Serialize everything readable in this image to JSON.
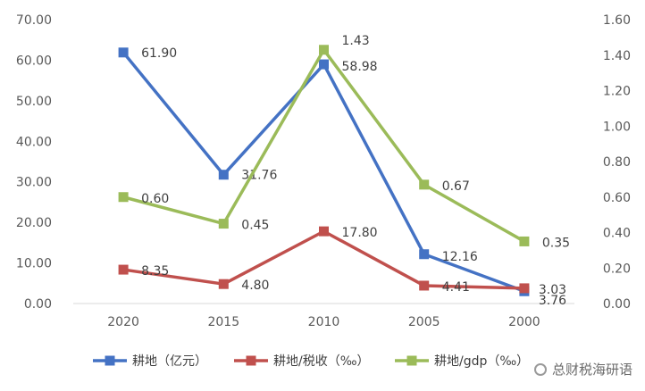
{
  "chart_data": {
    "type": "line",
    "categories": [
      "2020",
      "2015",
      "2010",
      "2005",
      "2000"
    ],
    "left_axis": {
      "min": 0,
      "max": 70,
      "step": 10,
      "tick_labels": [
        "0.00",
        "10.00",
        "20.00",
        "30.00",
        "40.00",
        "50.00",
        "60.00",
        "70.00"
      ]
    },
    "right_axis": {
      "min": 0,
      "max": 1.6,
      "step": 0.2,
      "tick_labels": [
        "0.00",
        "0.20",
        "0.40",
        "0.60",
        "0.80",
        "1.00",
        "1.20",
        "1.40",
        "1.60"
      ]
    },
    "grid": false,
    "legend_position": "bottom",
    "series": [
      {
        "name": "耕地（亿元）",
        "axis": "left",
        "color": "#4472C4",
        "values": [
          61.9,
          31.76,
          58.98,
          12.16,
          3.03
        ],
        "labels": [
          "61.90",
          "31.76",
          "58.98",
          "12.16",
          "3.03"
        ]
      },
      {
        "name": "耕地/税收（‰）",
        "axis": "left",
        "color": "#C0504D",
        "values": [
          8.35,
          4.8,
          17.8,
          4.41,
          3.76
        ],
        "labels": [
          "8.35",
          "4.80",
          "17.80",
          "4.41",
          "3.76"
        ]
      },
      {
        "name": "耕地/gdp（‰）",
        "axis": "right",
        "color": "#9BBB59",
        "values": [
          0.6,
          0.45,
          1.43,
          0.67,
          0.35
        ],
        "labels": [
          "0.60",
          "0.45",
          "1.43",
          "0.67",
          "0.35"
        ]
      }
    ]
  },
  "watermark": {
    "text": "总财税海研语",
    "icon": "wechat-icon"
  }
}
